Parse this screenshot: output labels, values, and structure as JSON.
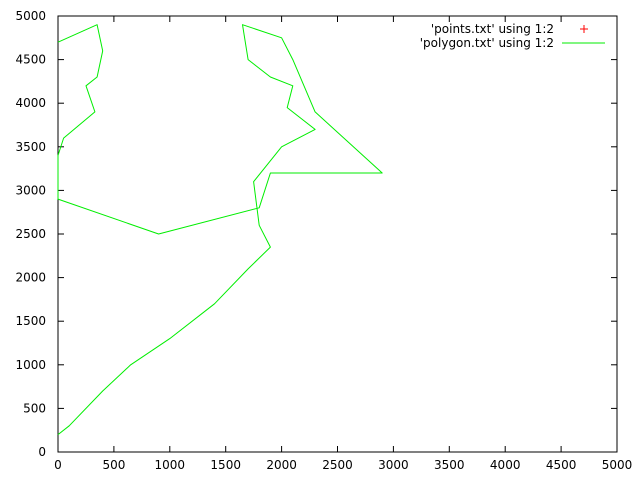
{
  "chart_data": {
    "type": "line",
    "title": "",
    "xlabel": "",
    "ylabel": "",
    "xlim": [
      0,
      5000
    ],
    "ylim": [
      0,
      5000
    ],
    "x_ticks": [
      0,
      500,
      1000,
      1500,
      2000,
      2500,
      3000,
      3500,
      4000,
      4500,
      5000
    ],
    "y_ticks": [
      0,
      500,
      1000,
      1500,
      2000,
      2500,
      3000,
      3500,
      4000,
      4500,
      5000
    ],
    "x_tick_labels": [
      "0",
      "500",
      "1000",
      "1500",
      "2000",
      "2500",
      "3000",
      "3500",
      "4000",
      "4500",
      "5000"
    ],
    "y_tick_labels": [
      "0",
      "500",
      "1000",
      "1500",
      "2000",
      "2500",
      "3000",
      "3500",
      "4000",
      "4500",
      "5000"
    ],
    "grid": false,
    "legend_position": "top-right",
    "colors": {
      "points": "#ff0000",
      "polygon": "#00ee00",
      "axes": "#000000"
    },
    "series": [
      {
        "name": "'points.txt' using 1:2",
        "style": "points",
        "color": "#ff0000",
        "x": [],
        "y": []
      },
      {
        "name": "'polygon.txt' using 1:2",
        "style": "lines",
        "color": "#00ee00",
        "x": [
          0,
          350,
          400,
          350,
          250,
          330,
          50,
          0,
          0,
          900,
          1800,
          1900,
          2900,
          2300,
          2100,
          2000,
          1650,
          1700,
          1900,
          2100,
          2050,
          2300,
          2000,
          1750,
          1800,
          1900,
          1700,
          1400,
          1000,
          650,
          400,
          100,
          0
        ],
        "y": [
          4700,
          4900,
          4600,
          4300,
          4200,
          3900,
          3600,
          3400,
          2900,
          2500,
          2800,
          3200,
          3200,
          3900,
          4500,
          4750,
          4900,
          4500,
          4300,
          4200,
          3950,
          3700,
          3500,
          3100,
          2600,
          2350,
          2100,
          1700,
          1300,
          1000,
          700,
          300,
          200
        ]
      }
    ]
  }
}
